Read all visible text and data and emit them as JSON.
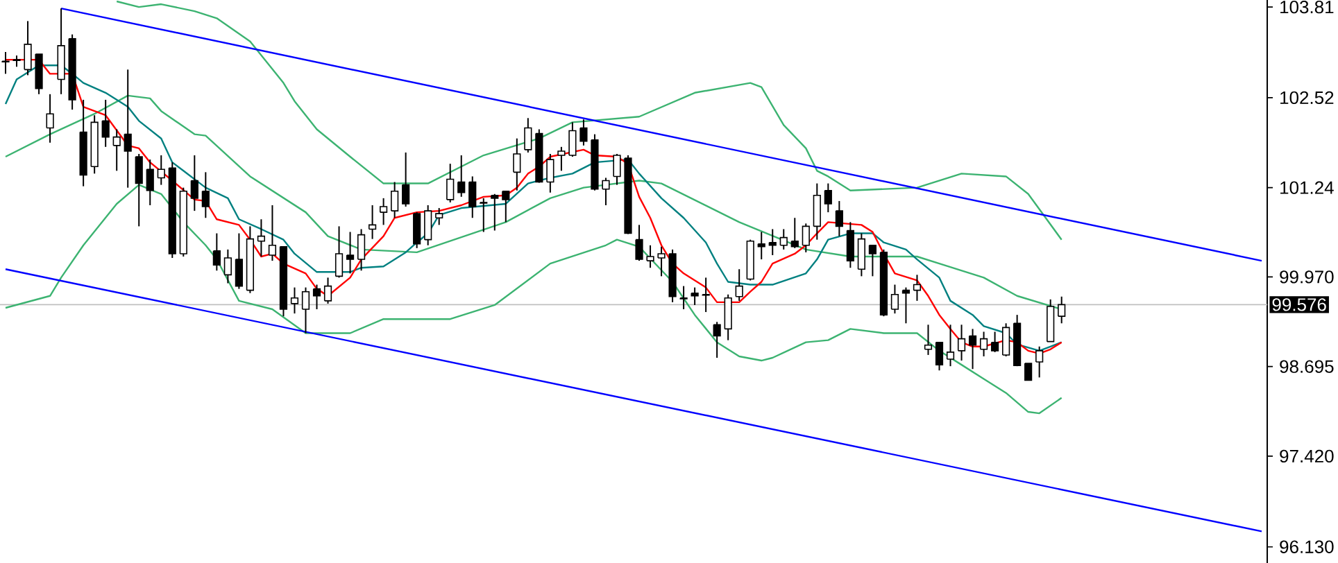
{
  "chart_data": {
    "type": "candlestick",
    "categories": [
      null,
      null,
      null,
      null,
      null,
      null,
      null,
      null,
      null,
      null,
      null,
      null,
      null,
      null,
      null,
      null,
      null,
      null,
      null,
      null,
      null,
      null,
      null,
      null,
      null,
      null,
      null,
      null,
      null,
      null,
      null,
      null,
      null,
      null,
      null,
      null,
      null,
      null,
      null,
      null,
      null,
      null,
      null,
      null,
      null,
      null,
      null,
      null,
      null,
      null,
      null,
      null,
      null,
      null,
      null,
      null,
      null,
      null,
      null,
      null,
      null,
      null,
      null,
      null,
      null,
      null,
      null,
      null,
      null,
      null,
      null,
      null,
      null,
      null,
      null,
      null,
      null,
      null,
      null,
      null,
      null,
      null,
      null,
      null,
      null,
      null,
      null,
      null,
      null,
      null,
      null,
      null,
      null,
      null,
      null,
      null,
      null,
      null,
      null,
      null,
      null,
      null,
      null,
      null,
      null,
      null,
      null,
      null,
      null,
      null,
      null,
      null,
      null,
      null
    ],
    "ohlc": [
      [
        103.04,
        103.17,
        102.86,
        103.03
      ],
      [
        103.06,
        103.12,
        102.96,
        103.05
      ],
      [
        102.92,
        103.61,
        102.84,
        103.28
      ],
      [
        103.14,
        103.14,
        102.57,
        102.65
      ],
      [
        102.09,
        102.57,
        101.88,
        102.29
      ],
      [
        102.78,
        103.79,
        102.57,
        103.26
      ],
      [
        103.36,
        103.42,
        102.35,
        102.49
      ],
      [
        102.03,
        102.49,
        101.26,
        101.42
      ],
      [
        101.54,
        102.27,
        101.44,
        102.17
      ],
      [
        102.19,
        102.49,
        101.82,
        101.96
      ],
      [
        101.84,
        102.07,
        101.48,
        101.96
      ],
      [
        102.0,
        102.92,
        101.24,
        101.76
      ],
      [
        101.68,
        101.72,
        100.69,
        101.3
      ],
      [
        101.5,
        101.64,
        100.99,
        101.2
      ],
      [
        101.38,
        101.7,
        101.28,
        101.5
      ],
      [
        101.52,
        101.6,
        100.24,
        100.3
      ],
      [
        100.3,
        101.24,
        100.26,
        101.19
      ],
      [
        101.34,
        101.7,
        100.91,
        101.09
      ],
      [
        101.19,
        101.46,
        100.81,
        100.97
      ],
      [
        100.34,
        100.59,
        100.06,
        100.14
      ],
      [
        100.0,
        100.36,
        99.88,
        100.24
      ],
      [
        100.22,
        100.59,
        99.8,
        99.84
      ],
      [
        99.78,
        100.69,
        99.74,
        100.51
      ],
      [
        100.48,
        100.79,
        100.26,
        100.55
      ],
      [
        100.28,
        100.99,
        100.2,
        100.42
      ],
      [
        100.4,
        100.4,
        99.41,
        99.51
      ],
      [
        99.59,
        99.82,
        99.45,
        99.67
      ],
      [
        99.51,
        99.82,
        99.17,
        99.76
      ],
      [
        99.8,
        99.86,
        99.51,
        99.7
      ],
      [
        99.63,
        99.96,
        99.59,
        99.84
      ],
      [
        99.98,
        100.69,
        99.96,
        100.3
      ],
      [
        100.28,
        100.61,
        100.02,
        100.22
      ],
      [
        100.22,
        100.65,
        100.06,
        100.57
      ],
      [
        100.65,
        100.99,
        100.51,
        100.71
      ],
      [
        100.89,
        101.09,
        100.71,
        100.97
      ],
      [
        100.91,
        101.32,
        100.81,
        101.19
      ],
      [
        101.28,
        101.74,
        100.97,
        101.01
      ],
      [
        100.87,
        100.89,
        100.38,
        100.44
      ],
      [
        100.5,
        100.99,
        100.42,
        100.91
      ],
      [
        100.81,
        100.95,
        100.71,
        100.87
      ],
      [
        101.07,
        101.58,
        101.03,
        101.36
      ],
      [
        101.32,
        101.7,
        101.11,
        101.17
      ],
      [
        101.32,
        101.4,
        100.81,
        100.97
      ],
      [
        101.03,
        101.09,
        100.61,
        101.02
      ],
      [
        101.13,
        101.15,
        100.63,
        101.09
      ],
      [
        101.19,
        101.19,
        100.75,
        101.07
      ],
      [
        101.46,
        101.94,
        101.2,
        101.72
      ],
      [
        101.78,
        102.23,
        101.74,
        102.09
      ],
      [
        102.01,
        102.07,
        101.31,
        101.32
      ],
      [
        101.32,
        101.72,
        101.17,
        101.64
      ],
      [
        101.7,
        101.82,
        101.48,
        101.76
      ],
      [
        101.7,
        102.17,
        101.68,
        102.05
      ],
      [
        102.09,
        102.21,
        101.84,
        101.9
      ],
      [
        101.92,
        102.0,
        101.2,
        101.22
      ],
      [
        101.22,
        101.38,
        100.99,
        101.34
      ],
      [
        101.4,
        101.72,
        101.28,
        101.7
      ],
      [
        101.66,
        101.7,
        100.58,
        100.59
      ],
      [
        100.5,
        100.71,
        100.2,
        100.22
      ],
      [
        100.2,
        100.42,
        100.1,
        100.26
      ],
      [
        100.24,
        100.4,
        99.98,
        100.3
      ],
      [
        100.3,
        100.36,
        99.61,
        99.69
      ],
      [
        99.67,
        99.84,
        99.51,
        99.66
      ],
      [
        99.74,
        99.82,
        99.57,
        99.7
      ],
      [
        99.72,
        99.96,
        99.47,
        99.71
      ],
      [
        99.29,
        99.33,
        98.82,
        99.13
      ],
      [
        99.23,
        99.72,
        99.07,
        99.67
      ],
      [
        99.69,
        100.08,
        99.63,
        99.84
      ],
      [
        99.94,
        100.5,
        99.92,
        100.48
      ],
      [
        100.44,
        100.61,
        100.22,
        100.4
      ],
      [
        100.46,
        100.65,
        100.28,
        100.42
      ],
      [
        100.42,
        100.65,
        100.36,
        100.53
      ],
      [
        100.48,
        100.81,
        100.38,
        100.4
      ],
      [
        100.42,
        100.73,
        100.32,
        100.69
      ],
      [
        100.69,
        101.3,
        100.5,
        101.13
      ],
      [
        101.2,
        101.3,
        100.89,
        101.01
      ],
      [
        100.91,
        101.05,
        100.55,
        100.69
      ],
      [
        100.63,
        100.75,
        100.1,
        100.2
      ],
      [
        100.08,
        100.59,
        99.98,
        100.51
      ],
      [
        100.42,
        100.42,
        99.98,
        100.3
      ],
      [
        100.32,
        100.36,
        99.41,
        99.43
      ],
      [
        99.51,
        99.86,
        99.45,
        99.72
      ],
      [
        99.78,
        99.82,
        99.31,
        99.74
      ],
      [
        99.78,
        100.0,
        99.63,
        99.86
      ],
      [
        98.94,
        99.29,
        98.86,
        99.0
      ],
      [
        99.04,
        99.04,
        98.64,
        98.72
      ],
      [
        98.8,
        99.29,
        98.7,
        98.9
      ],
      [
        98.92,
        99.29,
        98.78,
        99.09
      ],
      [
        99.13,
        99.23,
        98.66,
        99.0
      ],
      [
        98.94,
        99.19,
        98.84,
        99.09
      ],
      [
        99.04,
        99.19,
        98.9,
        98.92
      ],
      [
        98.86,
        99.31,
        98.84,
        99.25
      ],
      [
        99.31,
        99.43,
        98.7,
        98.71
      ],
      [
        98.74,
        98.74,
        98.5,
        98.5
      ],
      [
        98.76,
        98.98,
        98.54,
        98.92
      ],
      [
        99.05,
        99.65,
        99.05,
        99.55
      ],
      [
        99.41,
        99.69,
        99.31,
        99.576
      ],
      null,
      null,
      null,
      null,
      null,
      null,
      null,
      null,
      null,
      null,
      null,
      null,
      null,
      null,
      null,
      null,
      null,
      null
    ],
    "series": [
      {
        "type": "line",
        "color": "#3cb371",
        "values": [
          null,
          null,
          null,
          null,
          null,
          null,
          null,
          null,
          null,
          null,
          103.89,
          null,
          103.81,
          null,
          103.85,
          null,
          null,
          103.75,
          null,
          103.65,
          null,
          null,
          103.32,
          null,
          null,
          102.73,
          102.47,
          null,
          102.07,
          null,
          null,
          101.68,
          null,
          null,
          101.3,
          null,
          null,
          null,
          101.3,
          null,
          null,
          null,
          null,
          101.7,
          null,
          null,
          null,
          null,
          101.94,
          null,
          null,
          102.17,
          null,
          null,
          null,
          null,
          null,
          102.25,
          null,
          null,
          null,
          null,
          102.59,
          null,
          null,
          null,
          null,
          102.73,
          102.67,
          null,
          102.13,
          null,
          101.8,
          101.48,
          101.4,
          null,
          101.2,
          null,
          null,
          null,
          null,
          null,
          101.24,
          null,
          null,
          null,
          101.44,
          null,
          null,
          null,
          101.4,
          null,
          101.15,
          null,
          null,
          100.5,
          null,
          null,
          null,
          null,
          null,
          null,
          null,
          null,
          null,
          null,
          null,
          null,
          null,
          null,
          null,
          null,
          null,
          null
        ]
      },
      {
        "type": "line",
        "color": "#3cb371",
        "values": [
          101.68,
          null,
          null,
          null,
          102.0,
          null,
          null,
          null,
          102.29,
          null,
          null,
          102.55,
          null,
          102.51,
          102.33,
          null,
          null,
          102.0,
          101.98,
          null,
          null,
          null,
          101.4,
          null,
          null,
          null,
          null,
          100.89,
          null,
          100.55,
          null,
          null,
          100.36,
          null,
          null,
          null,
          null,
          100.32,
          null,
          null,
          null,
          null,
          null,
          null,
          null,
          100.75,
          null,
          null,
          null,
          101.09,
          null,
          null,
          101.24,
          null,
          null,
          null,
          null,
          101.34,
          null,
          101.3,
          null,
          null,
          null,
          null,
          null,
          null,
          100.75,
          null,
          null,
          null,
          null,
          null,
          100.36,
          null,
          null,
          null,
          100.26,
          null,
          null,
          null,
          null,
          null,
          100.26,
          null,
          100.16,
          null,
          null,
          null,
          99.96,
          null,
          null,
          99.7,
          null,
          null,
          null,
          99.51,
          null,
          null,
          null,
          null,
          null,
          null,
          null,
          null,
          null,
          null,
          null,
          null,
          null,
          null,
          null,
          null,
          null,
          null
        ]
      },
      {
        "type": "line",
        "color": "#3cb371",
        "values": [
          99.53,
          null,
          null,
          null,
          99.7,
          99.96,
          null,
          100.42,
          null,
          null,
          101.01,
          null,
          101.28,
          null,
          101.15,
          null,
          100.75,
          null,
          100.42,
          100.22,
          null,
          99.63,
          null,
          null,
          99.51,
          null,
          null,
          99.17,
          null,
          null,
          null,
          99.17,
          null,
          null,
          99.37,
          null,
          null,
          null,
          null,
          null,
          99.37,
          null,
          null,
          null,
          99.57,
          null,
          null,
          null,
          null,
          100.16,
          null,
          null,
          null,
          null,
          100.42,
          100.5,
          null,
          100.4,
          null,
          null,
          99.9,
          null,
          99.43,
          null,
          99.04,
          null,
          98.84,
          null,
          98.78,
          98.82,
          null,
          null,
          99.04,
          null,
          99.07,
          null,
          99.23,
          null,
          null,
          99.17,
          null,
          null,
          99.17,
          null,
          98.92,
          null,
          98.72,
          null,
          98.52,
          null,
          98.32,
          null,
          98.05,
          98.03,
          null,
          98.25,
          null,
          null,
          null,
          null,
          null,
          null,
          null,
          null,
          null,
          null,
          null,
          null,
          null,
          null,
          null,
          null,
          null,
          null
        ]
      },
      {
        "type": "line",
        "color": "#008080",
        "values": [
          102.43,
          102.78,
          null,
          102.98,
          null,
          102.98,
          102.86,
          102.73,
          null,
          102.59,
          null,
          102.39,
          102.19,
          null,
          101.94,
          101.6,
          101.48,
          null,
          101.24,
          null,
          101.09,
          100.79,
          null,
          100.65,
          null,
          100.5,
          100.3,
          null,
          100.04,
          null,
          null,
          100.04,
          100.1,
          null,
          100.12,
          null,
          100.32,
          100.46,
          100.59,
          100.85,
          null,
          100.95,
          null,
          null,
          null,
          101.01,
          null,
          101.3,
          null,
          101.38,
          null,
          101.44,
          null,
          101.6,
          null,
          null,
          101.64,
          101.44,
          null,
          101.09,
          null,
          100.81,
          null,
          100.46,
          100.16,
          99.9,
          null,
          99.86,
          null,
          99.86,
          null,
          null,
          100.02,
          100.22,
          100.5,
          null,
          100.59,
          null,
          100.59,
          100.46,
          null,
          100.36,
          100.22,
          null,
          99.96,
          99.63,
          null,
          99.43,
          99.27,
          null,
          99.17,
          99.01,
          null,
          98.92,
          98.98,
          99.04,
          null,
          null,
          null,
          null,
          null,
          null,
          null,
          null,
          null,
          null,
          null,
          null,
          null,
          null,
          null,
          null,
          null,
          null
        ]
      },
      {
        "type": "line",
        "color": "#ff0000",
        "values": [
          103.06,
          null,
          null,
          103.06,
          102.86,
          null,
          102.86,
          102.39,
          null,
          102.27,
          null,
          101.84,
          101.8,
          101.6,
          null,
          101.34,
          null,
          101.07,
          101.05,
          100.79,
          null,
          100.71,
          100.5,
          100.26,
          100.3,
          100.16,
          null,
          100.02,
          99.8,
          99.7,
          null,
          99.96,
          100.22,
          null,
          100.55,
          100.81,
          null,
          100.89,
          null,
          100.91,
          null,
          100.99,
          null,
          101.11,
          null,
          101.13,
          101.24,
          101.44,
          101.54,
          101.68,
          null,
          null,
          101.78,
          101.7,
          null,
          101.68,
          101.58,
          101.11,
          100.81,
          100.42,
          100.16,
          100.02,
          null,
          99.82,
          99.61,
          null,
          99.61,
          99.76,
          99.9,
          100.16,
          null,
          100.3,
          100.42,
          100.59,
          100.75,
          null,
          null,
          100.71,
          100.61,
          100.3,
          100.02,
          null,
          99.92,
          99.7,
          99.43,
          99.23,
          99.04,
          98.98,
          98.98,
          null,
          99.07,
          99.04,
          98.92,
          98.88,
          98.94,
          99.04,
          null,
          null,
          null,
          null,
          null,
          null,
          null,
          null,
          null,
          null,
          null,
          null,
          null,
          null,
          null,
          null,
          null,
          null
        ]
      },
      {
        "type": "line",
        "color": "#0000ff",
        "values": [
          null,
          null,
          null,
          null,
          null,
          103.79,
          null,
          null,
          null,
          null,
          null,
          null,
          null,
          null,
          null,
          null,
          null,
          null,
          null,
          null,
          null,
          null,
          null,
          null,
          null,
          null,
          null,
          null,
          null,
          null,
          null,
          null,
          null,
          null,
          null,
          null,
          null,
          null,
          null,
          null,
          null,
          null,
          null,
          null,
          null,
          null,
          null,
          null,
          null,
          null,
          null,
          null,
          null,
          null,
          null,
          null,
          null,
          null,
          null,
          null,
          null,
          null,
          null,
          null,
          null,
          null,
          null,
          null,
          null,
          null,
          null,
          null,
          null,
          null,
          null,
          null,
          null,
          null,
          null,
          null,
          null,
          null,
          null,
          null,
          null,
          null,
          null,
          null,
          null,
          null,
          null,
          null,
          null,
          null,
          null,
          null,
          null,
          null,
          null,
          null,
          null,
          null,
          null,
          null,
          null,
          null,
          null,
          null,
          null,
          null,
          null,
          null,
          null,
          100.2
        ]
      },
      {
        "type": "line",
        "color": "#0000ff",
        "values": [
          100.08,
          null,
          null,
          null,
          null,
          null,
          null,
          null,
          null,
          null,
          null,
          null,
          null,
          null,
          null,
          null,
          null,
          null,
          null,
          null,
          null,
          null,
          null,
          null,
          null,
          null,
          null,
          null,
          null,
          null,
          null,
          null,
          null,
          null,
          null,
          null,
          null,
          null,
          null,
          null,
          null,
          null,
          null,
          null,
          null,
          null,
          null,
          null,
          null,
          null,
          null,
          null,
          null,
          null,
          null,
          null,
          null,
          null,
          null,
          null,
          null,
          null,
          null,
          null,
          null,
          null,
          null,
          null,
          null,
          null,
          null,
          null,
          null,
          null,
          null,
          null,
          null,
          null,
          null,
          null,
          null,
          null,
          null,
          null,
          null,
          null,
          null,
          null,
          null,
          null,
          null,
          null,
          null,
          null,
          null,
          null,
          null,
          null,
          null,
          null,
          null,
          null,
          null,
          null,
          null,
          null,
          null,
          null,
          null,
          null,
          null,
          null,
          null,
          96.35
        ]
      }
    ],
    "ref_lines": [
      {
        "axis": "y",
        "value": 99.576,
        "label": "99.576",
        "color": "#c0c0c0"
      }
    ],
    "ylim": [
      95.9,
      103.91
    ],
    "yticks": [
      {
        "value": 103.81,
        "label": "103.81"
      },
      {
        "value": 102.52,
        "label": "102.52"
      },
      {
        "value": 101.24,
        "label": "101.24"
      },
      {
        "value": 99.97,
        "label": "99.970"
      },
      {
        "value": 98.695,
        "label": "98.695"
      },
      {
        "value": 97.42,
        "label": "97.420"
      },
      {
        "value": 96.13,
        "label": "96.130"
      }
    ],
    "tick_labels": "y"
  }
}
